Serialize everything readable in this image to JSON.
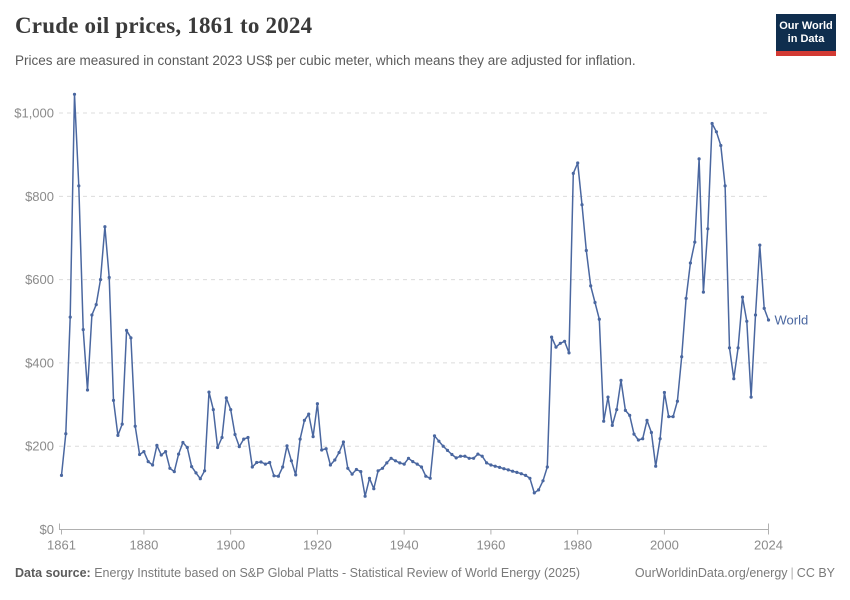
{
  "header": {
    "title": "Crude oil prices, 1861 to 2024",
    "subtitle": "Prices are measured in constant 2023 US$ per cubic meter, which means they are adjusted for inflation."
  },
  "logo": {
    "line1": "Our World",
    "line2": "in Data",
    "bg_color": "#0f2e4e",
    "accent_color": "#d23a33"
  },
  "footer": {
    "source_label": "Data source:",
    "source_text": " Energy Institute based on S&P Global Platts - Statistical Review of World Energy (2025)",
    "site": "OurWorldinData.org/energy",
    "separator": "|",
    "license": "CC BY"
  },
  "chart_data": {
    "type": "line",
    "title": "Crude oil prices, 1861 to 2024",
    "unit": "constant 2023 US$ per cubic meter",
    "xlabel": "",
    "ylabel": "",
    "x_range": [
      1861,
      2024
    ],
    "ylim": [
      0,
      1050
    ],
    "grid": "horizontal-dashed",
    "legend_position": "end-of-line-label",
    "axis_color": "#b0b0b0",
    "grid_color": "#dcdcdc",
    "tick_label_color": "#8b8b8b",
    "xticks": [
      1861,
      1880,
      1900,
      1920,
      1940,
      1960,
      1980,
      2000,
      2024
    ],
    "yticks": [
      {
        "value": 0,
        "label": "$0"
      },
      {
        "value": 200,
        "label": "$200"
      },
      {
        "value": 400,
        "label": "$400"
      },
      {
        "value": 600,
        "label": "$600"
      },
      {
        "value": 800,
        "label": "$800"
      },
      {
        "value": 1000,
        "label": "$1,000"
      }
    ],
    "series": [
      {
        "name": "World",
        "color": "#4a67a0",
        "points": [
          [
            1861,
            130
          ],
          [
            1862,
            230
          ],
          [
            1863,
            510
          ],
          [
            1864,
            1045
          ],
          [
            1865,
            825
          ],
          [
            1866,
            480
          ],
          [
            1867,
            335
          ],
          [
            1868,
            515
          ],
          [
            1869,
            540
          ],
          [
            1870,
            600
          ],
          [
            1871,
            727
          ],
          [
            1872,
            605
          ],
          [
            1873,
            310
          ],
          [
            1874,
            226
          ],
          [
            1875,
            253
          ],
          [
            1876,
            478
          ],
          [
            1877,
            460
          ],
          [
            1878,
            248
          ],
          [
            1879,
            180
          ],
          [
            1880,
            187
          ],
          [
            1881,
            163
          ],
          [
            1882,
            155
          ],
          [
            1883,
            202
          ],
          [
            1884,
            179
          ],
          [
            1885,
            187
          ],
          [
            1886,
            147
          ],
          [
            1887,
            139
          ],
          [
            1888,
            181
          ],
          [
            1889,
            209
          ],
          [
            1890,
            197
          ],
          [
            1891,
            151
          ],
          [
            1892,
            136
          ],
          [
            1893,
            122
          ],
          [
            1894,
            141
          ],
          [
            1895,
            330
          ],
          [
            1896,
            288
          ],
          [
            1897,
            197
          ],
          [
            1898,
            221
          ],
          [
            1899,
            316
          ],
          [
            1900,
            288
          ],
          [
            1901,
            228
          ],
          [
            1902,
            199
          ],
          [
            1903,
            217
          ],
          [
            1904,
            221
          ],
          [
            1905,
            150
          ],
          [
            1906,
            161
          ],
          [
            1907,
            162
          ],
          [
            1908,
            157
          ],
          [
            1909,
            161
          ],
          [
            1910,
            129
          ],
          [
            1911,
            128
          ],
          [
            1912,
            150
          ],
          [
            1913,
            201
          ],
          [
            1914,
            165
          ],
          [
            1915,
            131
          ],
          [
            1916,
            217
          ],
          [
            1917,
            262
          ],
          [
            1918,
            277
          ],
          [
            1919,
            223
          ],
          [
            1920,
            302
          ],
          [
            1921,
            191
          ],
          [
            1922,
            194
          ],
          [
            1923,
            155
          ],
          [
            1924,
            167
          ],
          [
            1925,
            185
          ],
          [
            1926,
            210
          ],
          [
            1927,
            147
          ],
          [
            1928,
            133
          ],
          [
            1929,
            144
          ],
          [
            1930,
            139
          ],
          [
            1931,
            80
          ],
          [
            1932,
            123
          ],
          [
            1933,
            98
          ],
          [
            1934,
            141
          ],
          [
            1935,
            147
          ],
          [
            1936,
            160
          ],
          [
            1937,
            171
          ],
          [
            1938,
            165
          ],
          [
            1939,
            160
          ],
          [
            1940,
            157
          ],
          [
            1941,
            171
          ],
          [
            1942,
            163
          ],
          [
            1943,
            157
          ],
          [
            1944,
            150
          ],
          [
            1945,
            128
          ],
          [
            1946,
            123
          ],
          [
            1947,
            225
          ],
          [
            1948,
            212
          ],
          [
            1949,
            200
          ],
          [
            1950,
            190
          ],
          [
            1951,
            180
          ],
          [
            1952,
            172
          ],
          [
            1953,
            176
          ],
          [
            1954,
            176
          ],
          [
            1955,
            171
          ],
          [
            1956,
            171
          ],
          [
            1957,
            181
          ],
          [
            1958,
            176
          ],
          [
            1959,
            160
          ],
          [
            1960,
            155
          ],
          [
            1961,
            152
          ],
          [
            1962,
            149
          ],
          [
            1963,
            146
          ],
          [
            1964,
            143
          ],
          [
            1965,
            140
          ],
          [
            1966,
            137
          ],
          [
            1967,
            134
          ],
          [
            1968,
            130
          ],
          [
            1969,
            123
          ],
          [
            1970,
            88
          ],
          [
            1971,
            95
          ],
          [
            1972,
            117
          ],
          [
            1973,
            150
          ],
          [
            1974,
            462
          ],
          [
            1975,
            438
          ],
          [
            1976,
            447
          ],
          [
            1977,
            452
          ],
          [
            1978,
            424
          ],
          [
            1979,
            855
          ],
          [
            1980,
            880
          ],
          [
            1981,
            780
          ],
          [
            1982,
            670
          ],
          [
            1983,
            585
          ],
          [
            1984,
            545
          ],
          [
            1985,
            505
          ],
          [
            1986,
            260
          ],
          [
            1987,
            318
          ],
          [
            1988,
            250
          ],
          [
            1989,
            288
          ],
          [
            1990,
            358
          ],
          [
            1991,
            286
          ],
          [
            1992,
            274
          ],
          [
            1993,
            229
          ],
          [
            1994,
            215
          ],
          [
            1995,
            218
          ],
          [
            1996,
            262
          ],
          [
            1997,
            233
          ],
          [
            1998,
            152
          ],
          [
            1999,
            218
          ],
          [
            2000,
            329
          ],
          [
            2001,
            271
          ],
          [
            2002,
            271
          ],
          [
            2003,
            308
          ],
          [
            2004,
            415
          ],
          [
            2005,
            555
          ],
          [
            2006,
            640
          ],
          [
            2007,
            690
          ],
          [
            2008,
            890
          ],
          [
            2009,
            570
          ],
          [
            2010,
            722
          ],
          [
            2011,
            975
          ],
          [
            2012,
            955
          ],
          [
            2013,
            922
          ],
          [
            2014,
            825
          ],
          [
            2015,
            436
          ],
          [
            2016,
            362
          ],
          [
            2017,
            436
          ],
          [
            2018,
            558
          ],
          [
            2019,
            500
          ],
          [
            2020,
            318
          ],
          [
            2021,
            515
          ],
          [
            2022,
            683
          ],
          [
            2023,
            531
          ],
          [
            2024,
            503
          ]
        ]
      }
    ]
  }
}
